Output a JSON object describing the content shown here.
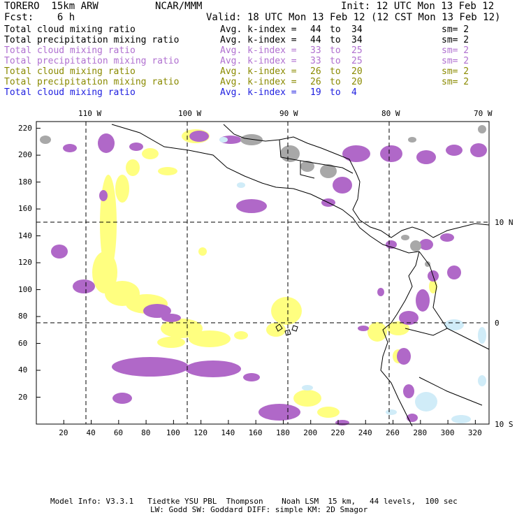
{
  "header": {
    "model": "TORERO  15km ARW",
    "org": "NCAR/MMM",
    "init": "Init: 12 UTC Mon 13 Feb 12",
    "fcst": "Fcst:    6 h",
    "valid": "Valid: 18 UTC Mon 13 Feb 12 (12 CST Mon 13 Feb 12)"
  },
  "legend": [
    {
      "field": "Total cloud mixing ratio",
      "kindex": "Avg. k-index =",
      "hi": "44",
      "to": "to",
      "lo": "34",
      "sm": "sm= 2",
      "color": "#000000"
    },
    {
      "field": "Total precipitation mixing ratio",
      "kindex": "Avg. k-index =",
      "hi": "44",
      "to": "to",
      "lo": "34",
      "sm": "sm= 2",
      "color": "#000000"
    },
    {
      "field": "Total cloud mixing ratio",
      "kindex": "Avg. k-index =",
      "hi": "33",
      "to": "to",
      "lo": "25",
      "sm": "sm= 2",
      "color": "#b070d0"
    },
    {
      "field": "Total precipitation mixing ratio",
      "kindex": "Avg. k-index =",
      "hi": "33",
      "to": "to",
      "lo": "25",
      "sm": "sm= 2",
      "color": "#b070d0"
    },
    {
      "field": "Total cloud mixing ratio",
      "kindex": "Avg. k-index =",
      "hi": "26",
      "to": "to",
      "lo": "20",
      "sm": "sm= 2",
      "color": "#8a8a00"
    },
    {
      "field": "Total precipitation mixing ratio",
      "kindex": "Avg. k-index =",
      "hi": "26",
      "to": "to",
      "lo": "20",
      "sm": "sm= 2",
      "color": "#8a8a00"
    },
    {
      "field": "Total cloud mixing ratio",
      "kindex": "Avg. k-index =",
      "hi": "19",
      "to": "to",
      "lo": "4",
      "sm": "",
      "color": "#2020e0"
    }
  ],
  "axes": {
    "lon_labels": [
      "110 W",
      "100 W",
      "90 W",
      "80 W",
      "70 W"
    ],
    "lat_labels": [
      "10 N",
      "0",
      "10 S"
    ],
    "y_ticks": [
      "220",
      "200",
      "180",
      "160",
      "140",
      "120",
      "100",
      "80",
      "60",
      "40",
      "20"
    ],
    "x_ticks": [
      "20",
      "40",
      "60",
      "80",
      "100",
      "120",
      "140",
      "160",
      "180",
      "200",
      "220",
      "240",
      "260",
      "280",
      "300",
      "320"
    ],
    "x_range": [
      0,
      330
    ],
    "y_range": [
      0,
      225
    ]
  },
  "colors": {
    "gray": "#a8a8a8",
    "purple": "#b068c8",
    "yellow": "#ffff80",
    "lightblue": "#d0ecf8"
  },
  "footer": {
    "line1": "Model Info: V3.3.1   Tiedtke YSU PBL  Thompson    Noah LSM  15 km,   44 levels,  100 sec",
    "line2": "LW: Godd SW: Goddard DIFF: simple KM: 2D Smagor"
  }
}
